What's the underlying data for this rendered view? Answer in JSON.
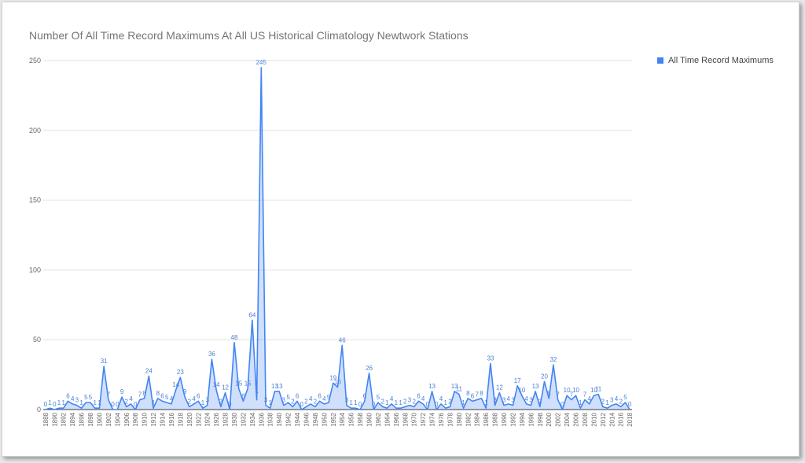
{
  "chart_data": {
    "type": "area",
    "title": "Number Of All Time Record Maximums At All US Historical Climatology Newtwork Stations",
    "xlabel": "",
    "ylabel": "",
    "ylim": [
      0,
      250
    ],
    "yticks": [
      0,
      50,
      100,
      150,
      200,
      250
    ],
    "grid": true,
    "legend_position": "right",
    "series_color": "#4285f4",
    "x": [
      1888,
      1889,
      1890,
      1891,
      1892,
      1893,
      1894,
      1895,
      1896,
      1897,
      1898,
      1899,
      1900,
      1901,
      1902,
      1903,
      1904,
      1905,
      1906,
      1907,
      1908,
      1909,
      1910,
      1911,
      1912,
      1913,
      1914,
      1915,
      1916,
      1917,
      1918,
      1919,
      1920,
      1921,
      1922,
      1923,
      1924,
      1925,
      1926,
      1927,
      1928,
      1929,
      1930,
      1931,
      1932,
      1933,
      1934,
      1935,
      1936,
      1937,
      1938,
      1939,
      1940,
      1941,
      1942,
      1943,
      1944,
      1945,
      1946,
      1947,
      1948,
      1949,
      1950,
      1951,
      1952,
      1953,
      1954,
      1955,
      1956,
      1957,
      1958,
      1959,
      1960,
      1961,
      1962,
      1963,
      1964,
      1965,
      1966,
      1967,
      1968,
      1969,
      1970,
      1971,
      1972,
      1973,
      1974,
      1975,
      1976,
      1977,
      1978,
      1979,
      1980,
      1981,
      1982,
      1983,
      1984,
      1985,
      1986,
      1987,
      1988,
      1989,
      1990,
      1991,
      1992,
      1993,
      1994,
      1995,
      1996,
      1997,
      1998,
      1999,
      2000,
      2001,
      2002,
      2003,
      2004,
      2005,
      2006,
      2007,
      2008,
      2009,
      2010,
      2011,
      2012,
      2013,
      2014,
      2015,
      2016,
      2017,
      2018
    ],
    "xtick_labels": [
      "1888",
      "1890",
      "1892",
      "1894",
      "1896",
      "1898",
      "1900",
      "1902",
      "1904",
      "1906",
      "1908",
      "1910",
      "1912",
      "1914",
      "1916",
      "1918",
      "1920",
      "1922",
      "1924",
      "1926",
      "1928",
      "1930",
      "1932",
      "1934",
      "1936",
      "1938",
      "1940",
      "1942",
      "1944",
      "1946",
      "1948",
      "1950",
      "1952",
      "1954",
      "1956",
      "1958",
      "1960",
      "1962",
      "1964",
      "1966",
      "1968",
      "1970",
      "1972",
      "1974",
      "1976",
      "1978",
      "1980",
      "1982",
      "1984",
      "1986",
      "1988",
      "1990",
      "1992",
      "1994",
      "1996",
      "1998",
      "2000",
      "2002",
      "2004",
      "2006",
      "2008",
      "2010",
      "2012",
      "2014",
      "2016",
      "2018"
    ],
    "series": [
      {
        "name": "All Time Record Maximums",
        "values": [
          0,
          1,
          0,
          1,
          1,
          6,
          4,
          3,
          1,
          5,
          5,
          1,
          1,
          31,
          7,
          0,
          0,
          9,
          2,
          4,
          0,
          7,
          8,
          24,
          1,
          8,
          6,
          5,
          4,
          14,
          23,
          9,
          2,
          4,
          6,
          1,
          3,
          36,
          14,
          2,
          12,
          0,
          48,
          15,
          6,
          15,
          64,
          7,
          245,
          3,
          1,
          13,
          13,
          3,
          5,
          2,
          6,
          0,
          2,
          4,
          2,
          6,
          4,
          5,
          19,
          16,
          46,
          3,
          1,
          1,
          0,
          6,
          26,
          0,
          5,
          2,
          1,
          4,
          1,
          1,
          2,
          3,
          2,
          6,
          4,
          0,
          13,
          0,
          4,
          1,
          2,
          13,
          11,
          1,
          8,
          6,
          7,
          8,
          1,
          33,
          3,
          12,
          3,
          4,
          3,
          17,
          10,
          4,
          3,
          13,
          2,
          20,
          8,
          32,
          7,
          0,
          10,
          7,
          10,
          1,
          7,
          4,
          10,
          11,
          2,
          1,
          3,
          4,
          2,
          5,
          0
        ]
      }
    ]
  }
}
